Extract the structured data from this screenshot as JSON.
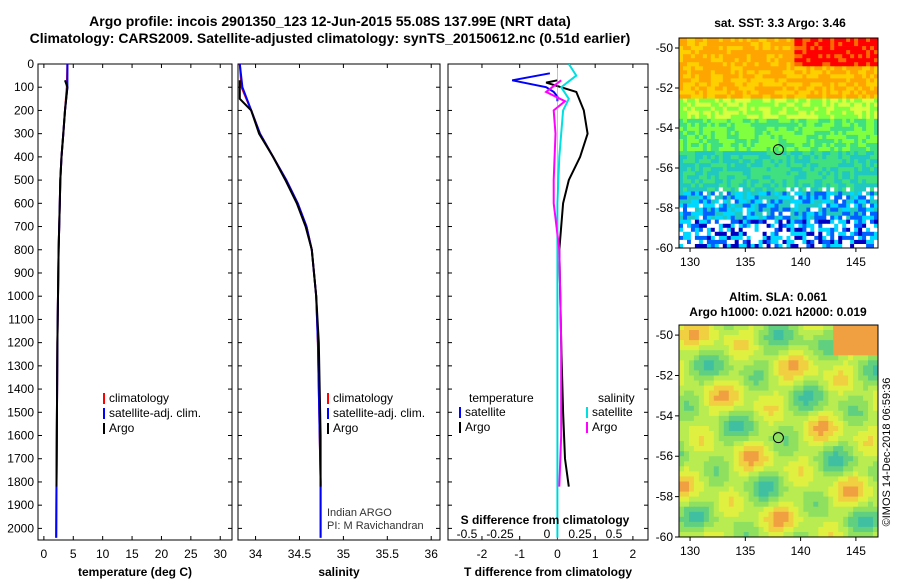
{
  "header": {
    "line1": "Argo profile: incois 2901350_123 12-Jun-2015 55.08S 137.99E (NRT data)",
    "line2": "Climatology: CARS2009. Satellite-adjusted climatology: synTS_20150612.nc (0.51d earlier)"
  },
  "credit": "©IMOS 14-Dec-2018 06:59:36",
  "chart_data": [
    {
      "type": "line",
      "id": "temperature",
      "xlabel": "temperature (deg C)",
      "xticks": [
        0,
        5,
        10,
        15,
        20,
        25,
        30
      ],
      "xlim": [
        -1,
        32
      ],
      "ylim": [
        0,
        2050
      ],
      "yticks": [
        0,
        100,
        200,
        300,
        400,
        500,
        600,
        700,
        800,
        900,
        1000,
        1100,
        1200,
        1300,
        1400,
        1500,
        1600,
        1700,
        1800,
        1900,
        2000
      ],
      "yinvert": true,
      "legend": [
        "climatology",
        "satellite-adj. clim.",
        "Argo"
      ],
      "series": [
        {
          "name": "climatology",
          "color": "#ff0000",
          "x": [
            4.0,
            3.9,
            3.6,
            3.3,
            3.0,
            2.8,
            2.7,
            2.6,
            2.5,
            2.4,
            2.3,
            2.25,
            2.2,
            2.15,
            2.1
          ],
          "y": [
            0,
            100,
            200,
            300,
            400,
            500,
            600,
            700,
            800,
            1000,
            1200,
            1400,
            1600,
            1800,
            2040
          ]
        },
        {
          "name": "satellite-adj. clim.",
          "color": "#0000ff",
          "x": [
            4.0,
            4.0,
            3.6,
            3.3,
            3.0,
            2.8,
            2.7,
            2.6,
            2.5,
            2.4,
            2.3,
            2.25,
            2.2,
            2.15,
            2.1
          ],
          "y": [
            0,
            100,
            200,
            300,
            400,
            500,
            600,
            700,
            800,
            1000,
            1200,
            1400,
            1600,
            1800,
            2040
          ]
        },
        {
          "name": "Argo",
          "color": "#000000",
          "x": [
            3.6,
            4.0,
            3.6,
            3.3,
            3.0,
            2.8,
            2.7,
            2.6,
            2.5,
            2.4,
            2.3,
            2.25,
            2.2,
            2.15
          ],
          "y": [
            70,
            100,
            200,
            300,
            400,
            500,
            600,
            700,
            800,
            1000,
            1200,
            1400,
            1600,
            1820
          ]
        }
      ]
    },
    {
      "type": "line",
      "id": "salinity",
      "xlabel": "salinity",
      "xticks": [
        34,
        34.5,
        35,
        35.5,
        36
      ],
      "xlim": [
        33.8,
        36.1
      ],
      "ylim": [
        0,
        2050
      ],
      "yinvert": true,
      "legend": [
        "climatology",
        "satellite-adj. clim.",
        "Argo"
      ],
      "annotation": [
        "Indian ARGO",
        "PI: M Ravichandran"
      ],
      "series": [
        {
          "name": "climatology",
          "color": "#ff0000",
          "x": [
            33.82,
            33.84,
            33.95,
            34.05,
            34.2,
            34.35,
            34.48,
            34.58,
            34.64,
            34.69,
            34.71,
            34.72,
            34.73,
            34.74,
            34.74
          ],
          "y": [
            0,
            100,
            200,
            300,
            400,
            500,
            600,
            700,
            800,
            1000,
            1200,
            1400,
            1600,
            1800,
            2040
          ]
        },
        {
          "name": "satellite-adj. clim.",
          "color": "#0000ff",
          "x": [
            33.82,
            33.85,
            33.95,
            34.05,
            34.2,
            34.35,
            34.48,
            34.58,
            34.64,
            34.69,
            34.71,
            34.72,
            34.73,
            34.74,
            34.74
          ],
          "y": [
            0,
            100,
            200,
            300,
            400,
            500,
            600,
            700,
            800,
            1000,
            1200,
            1400,
            1600,
            1800,
            2040
          ]
        },
        {
          "name": "Argo",
          "color": "#000000",
          "x": [
            33.82,
            33.82,
            33.95,
            34.04,
            34.2,
            34.34,
            34.47,
            34.57,
            34.64,
            34.69,
            34.72,
            34.73,
            34.74,
            34.74
          ],
          "y": [
            70,
            150,
            200,
            300,
            400,
            500,
            600,
            700,
            800,
            1000,
            1200,
            1400,
            1600,
            1820
          ]
        }
      ]
    },
    {
      "type": "line",
      "id": "difference",
      "xlabel": "T difference from climatology",
      "x2label": "S difference from climatology",
      "xticks": [
        -2,
        -1,
        0,
        1,
        2
      ],
      "x2ticks": [
        "-0.5",
        "-0.25",
        "0",
        "0.25",
        "0.5"
      ],
      "xlim": [
        -2.9,
        2.4
      ],
      "ylim": [
        0,
        2050
      ],
      "yinvert": true,
      "legend_left_title": "temperature",
      "legend_left": [
        "satellite",
        "Argo"
      ],
      "legend_right_title": "salinity",
      "legend_right": [
        "satellite",
        "Argo"
      ],
      "series": [
        {
          "name": "temperature satellite",
          "color": "#0000ff",
          "x": [
            -0.2,
            -1.2,
            -0.3,
            -0.1,
            0.0,
            0.0
          ],
          "y": [
            40,
            70,
            100,
            120,
            140,
            160
          ]
        },
        {
          "name": "temperature Argo",
          "color": "#000000",
          "x": [
            0.0,
            -0.3,
            0.5,
            0.7,
            0.8,
            0.6,
            0.3,
            0.15,
            0.05,
            0.1,
            0.15,
            0.2,
            0.3
          ],
          "y": [
            70,
            80,
            120,
            200,
            300,
            400,
            500,
            600,
            800,
            1200,
            1500,
            1700,
            1820
          ]
        },
        {
          "name": "salinity satellite",
          "color": "#00e0e0",
          "x": [
            0.3,
            0.5,
            0.1,
            0.3,
            0.15,
            0.05,
            0.0,
            0.0,
            0.0,
            0.0,
            0.0
          ],
          "y": [
            0,
            50,
            100,
            150,
            200,
            400,
            600,
            800,
            1200,
            1600,
            2040
          ]
        },
        {
          "name": "salinity Argo",
          "color": "#ff00ff",
          "x": [
            0.1,
            -0.3,
            0.2,
            -0.1,
            -0.05,
            -0.1,
            -0.1,
            0.05,
            0.1,
            0.1,
            0.05
          ],
          "y": [
            70,
            120,
            160,
            200,
            300,
            500,
            600,
            800,
            1200,
            1600,
            1820
          ]
        }
      ]
    },
    {
      "type": "heatmap",
      "id": "sst-map",
      "title": "sat. SST: 3.3 Argo: 3.46",
      "xticks": [
        130,
        135,
        140,
        145
      ],
      "xlim": [
        129,
        147
      ],
      "yticks": [
        -50,
        -52,
        -54,
        -56,
        -58,
        -60
      ],
      "ylim": [
        -60,
        -49.5
      ],
      "marker": {
        "lon": 137.99,
        "lat": -55.08
      }
    },
    {
      "type": "heatmap",
      "id": "sla-map",
      "title": "Altim. SLA: 0.061",
      "subtitle": "Argo h1000: 0.021 h2000: 0.019",
      "xticks": [
        130,
        135,
        140,
        145
      ],
      "xlim": [
        129,
        147
      ],
      "yticks": [
        -50,
        -52,
        -54,
        -56,
        -58,
        -60
      ],
      "ylim": [
        -60,
        -49.5
      ],
      "marker": {
        "lon": 137.99,
        "lat": -55.08
      }
    }
  ]
}
